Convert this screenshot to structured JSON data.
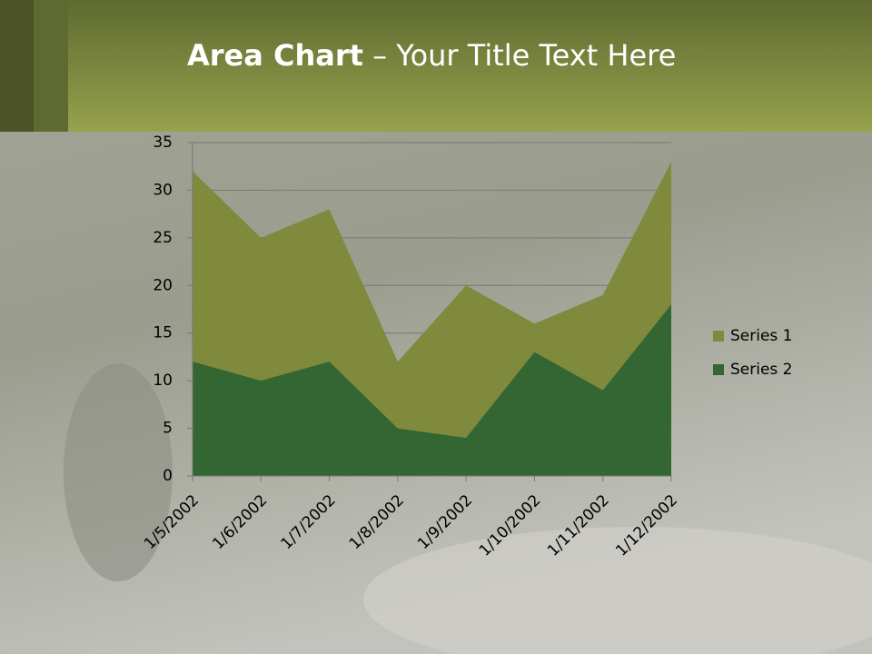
{
  "chart_data": {
    "type": "area",
    "title": [
      "Area Chart",
      "– Your Title Text Here"
    ],
    "categories": [
      "1/5/2002",
      "1/6/2002",
      "1/7/2002",
      "1/8/2002",
      "1/9/2002",
      "1/10/2002",
      "1/11/2002",
      "1/12/2002"
    ],
    "series": [
      {
        "name": "Series 1",
        "color": "#7f8a3d",
        "values": [
          32,
          25,
          28,
          12,
          20,
          16,
          19,
          33
        ]
      },
      {
        "name": "Series 2",
        "color": "#336633",
        "values": [
          12,
          10,
          12,
          5,
          4,
          13,
          9,
          18
        ]
      }
    ],
    "ylim": [
      0,
      35
    ],
    "yticks": [
      0,
      5,
      10,
      15,
      20,
      25,
      30,
      35
    ],
    "grid": true,
    "legend": "right"
  }
}
